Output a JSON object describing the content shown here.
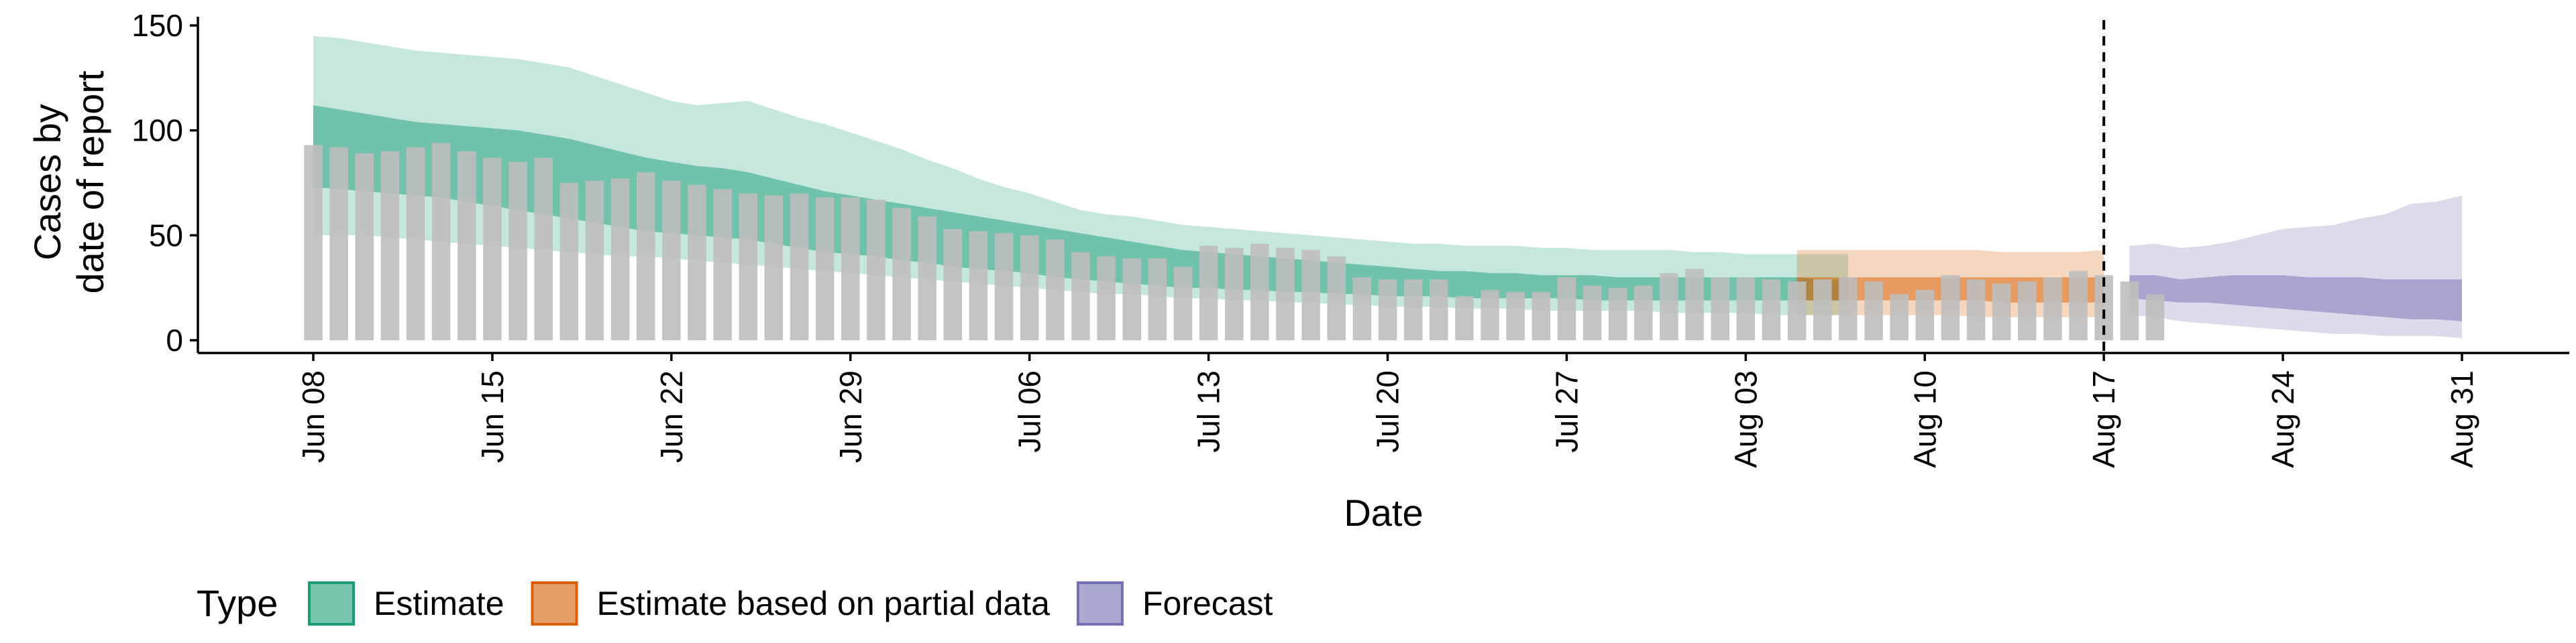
{
  "chart_data": {
    "type": "bar",
    "title": "",
    "xlabel": "Date",
    "ylabel_lines": [
      "Cases by",
      "date of report"
    ],
    "ylim": [
      0,
      150
    ],
    "yticks": [
      0,
      50,
      100,
      150
    ],
    "x_start": "2020-06-08",
    "x_end": "2020-08-31",
    "xticks": [
      "Jun 08",
      "Jun 15",
      "Jun 22",
      "Jun 29",
      "Jul 06",
      "Jul 13",
      "Jul 20",
      "Jul 27",
      "Aug 03",
      "Aug 10",
      "Aug 17",
      "Aug 24",
      "Aug 31"
    ],
    "forecast_date": "2020-08-17",
    "bar_color": "#bebebe",
    "reported_cases": [
      93,
      92,
      89,
      90,
      92,
      94,
      90,
      87,
      85,
      87,
      75,
      76,
      77,
      80,
      76,
      74,
      72,
      70,
      69,
      70,
      68,
      68,
      67,
      63,
      59,
      53,
      52,
      51,
      50,
      48,
      42,
      40,
      39,
      39,
      35,
      45,
      44,
      46,
      44,
      43,
      40,
      30,
      29,
      29,
      29,
      21,
      24,
      23,
      23,
      30,
      26,
      25,
      26,
      32,
      34,
      30,
      30,
      29,
      28,
      29,
      30,
      28,
      22,
      24,
      31,
      29,
      27,
      28,
      30,
      33,
      31,
      28,
      22
    ],
    "legend": {
      "title": "Type",
      "position": "bottom-left",
      "items": [
        {
          "label": "Estimate",
          "color": "#1b9e77"
        },
        {
          "label": "Estimate based on partial data",
          "color": "#d95f02"
        },
        {
          "label": "Forecast",
          "color": "#7570b3"
        }
      ]
    },
    "bands": [
      {
        "type": "Estimate",
        "color": "#1b9e77",
        "outer_upper": [
          145,
          144,
          142,
          140,
          138,
          137,
          136,
          135,
          134,
          132,
          130,
          126,
          122,
          118,
          114,
          112,
          113,
          114,
          110,
          106,
          103,
          99,
          95,
          91,
          86,
          82,
          77,
          73,
          70,
          66,
          62,
          60,
          59,
          57,
          55,
          54,
          53,
          52,
          51,
          50,
          49,
          48,
          47,
          46,
          46,
          45,
          45,
          45,
          44,
          44,
          43,
          43,
          43,
          43,
          42,
          42,
          41,
          41,
          41,
          41,
          41
        ],
        "outer_lower": [
          50,
          50,
          50,
          49,
          48,
          47,
          46,
          45,
          44,
          43,
          42,
          41,
          40,
          40,
          39,
          38,
          37,
          36,
          35,
          34,
          33,
          32,
          31,
          30,
          29,
          28,
          27,
          26,
          25,
          24,
          23,
          22,
          22,
          21,
          20,
          20,
          19,
          19,
          18,
          18,
          17,
          17,
          16,
          16,
          16,
          15,
          15,
          15,
          14,
          14,
          14,
          14,
          14,
          13,
          13,
          13,
          13,
          12,
          12,
          12,
          12
        ],
        "inner_upper": [
          112,
          110,
          108,
          106,
          104,
          103,
          102,
          101,
          100,
          98,
          96,
          93,
          90,
          87,
          85,
          83,
          82,
          80,
          77,
          74,
          71,
          69,
          67,
          65,
          63,
          61,
          59,
          57,
          55,
          53,
          51,
          49,
          47,
          45,
          43,
          42,
          41,
          40,
          39,
          38,
          37,
          36,
          35,
          34,
          33,
          33,
          32,
          32,
          31,
          31,
          31,
          30,
          30,
          30,
          30,
          30,
          30,
          30,
          30,
          29,
          29
        ],
        "inner_lower": [
          73,
          72,
          71,
          70,
          69,
          68,
          66,
          64,
          62,
          60,
          58,
          56,
          54,
          52,
          51,
          50,
          49,
          48,
          46,
          44,
          42,
          41,
          40,
          38,
          37,
          35,
          34,
          33,
          32,
          30,
          29,
          28,
          27,
          26,
          25,
          25,
          24,
          24,
          23,
          23,
          22,
          22,
          21,
          21,
          21,
          20,
          20,
          20,
          20,
          20,
          19,
          19,
          19,
          19,
          19,
          19,
          19,
          19,
          19,
          19,
          19
        ]
      },
      {
        "type": "Estimate based on partial data",
        "color": "#d95f02",
        "outer_upper": [
          43,
          43,
          43,
          43,
          43,
          43,
          43,
          43,
          42,
          42,
          42,
          42,
          43
        ],
        "outer_lower": [
          12,
          12,
          12,
          12,
          12,
          12,
          12,
          11,
          11,
          11,
          11,
          11,
          11
        ],
        "inner_upper": [
          30,
          30,
          30,
          30,
          30,
          30,
          30,
          30,
          30,
          30,
          30,
          30,
          30
        ],
        "inner_lower": [
          19,
          19,
          19,
          19,
          19,
          19,
          19,
          19,
          18,
          18,
          18,
          18,
          18
        ]
      },
      {
        "type": "Forecast",
        "color": "#7570b3",
        "outer_upper": [
          45,
          46,
          44,
          45,
          47,
          50,
          53,
          54,
          55,
          58,
          60,
          65,
          66,
          69
        ],
        "outer_lower": [
          12,
          11,
          9,
          8,
          7,
          6,
          5,
          4,
          3,
          3,
          2,
          2,
          2,
          1
        ],
        "inner_upper": [
          31,
          31,
          29,
          30,
          31,
          31,
          31,
          30,
          30,
          30,
          29,
          29,
          29,
          29
        ],
        "inner_lower": [
          20,
          19,
          18,
          18,
          17,
          16,
          15,
          14,
          13,
          12,
          11,
          10,
          10,
          9
        ]
      }
    ]
  }
}
